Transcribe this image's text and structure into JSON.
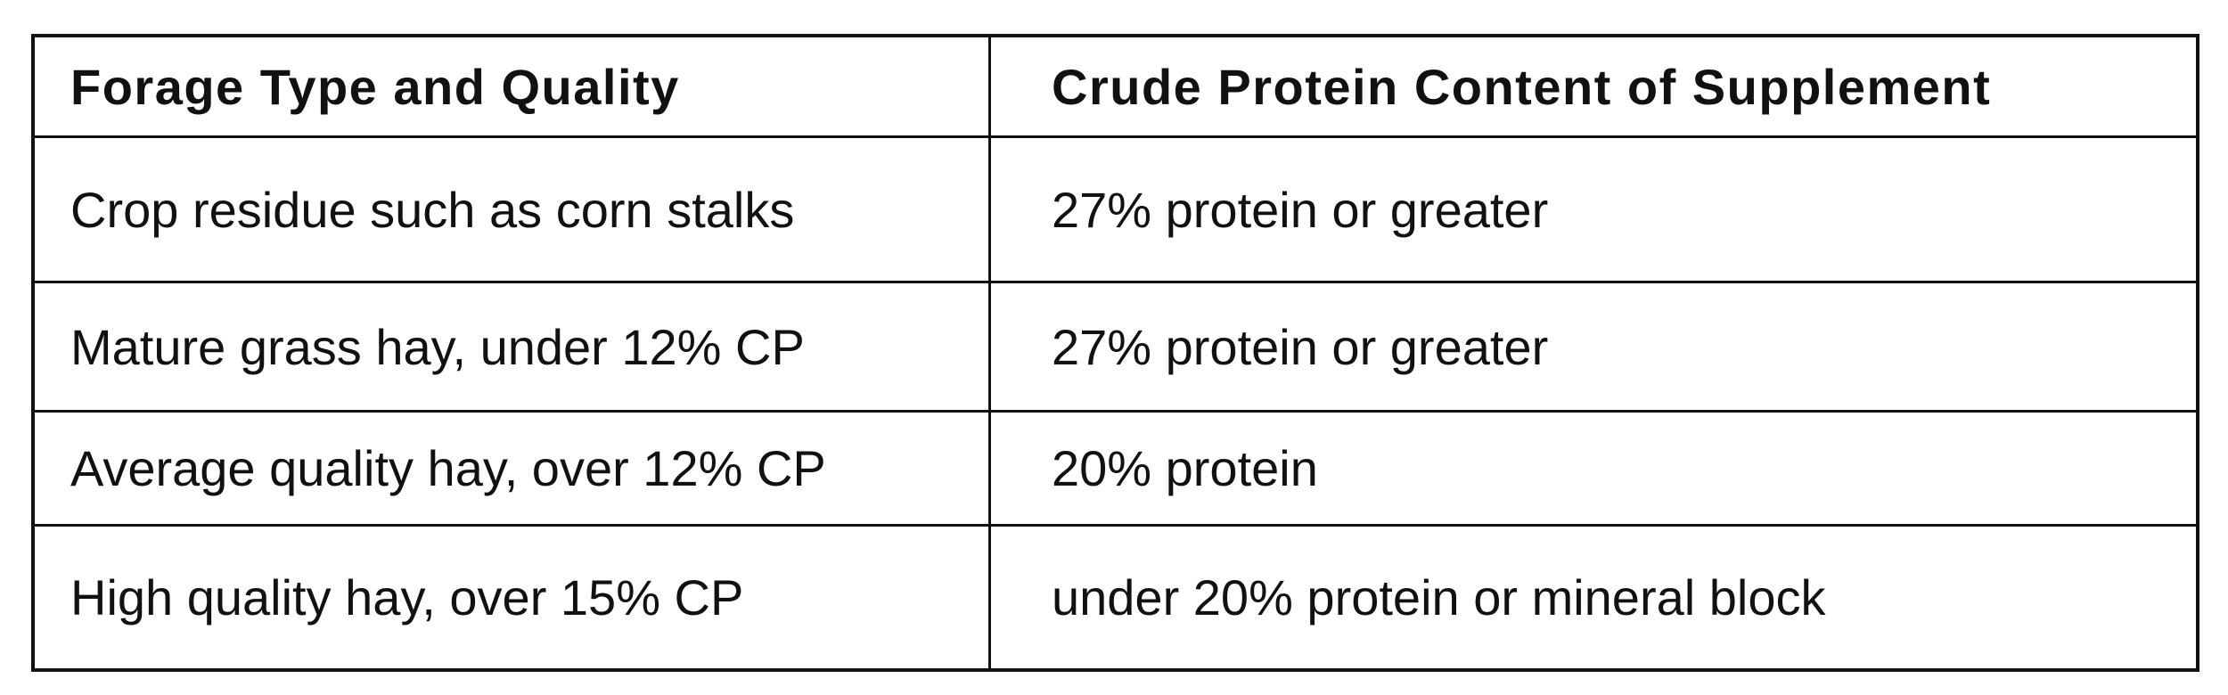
{
  "table": {
    "header": [
      "Forage Type and Quality",
      "Crude Protein Content of Supplement"
    ],
    "rows": [
      [
        "Crop residue such as corn stalks",
        "27% protein or greater"
      ],
      [
        "Mature grass hay, under 12% CP",
        "27% protein or greater"
      ],
      [
        "Average quality hay, over 12% CP",
        "20% protein"
      ],
      [
        "High quality hay, over 15% CP",
        "under 20% protein or mineral block"
      ]
    ]
  }
}
